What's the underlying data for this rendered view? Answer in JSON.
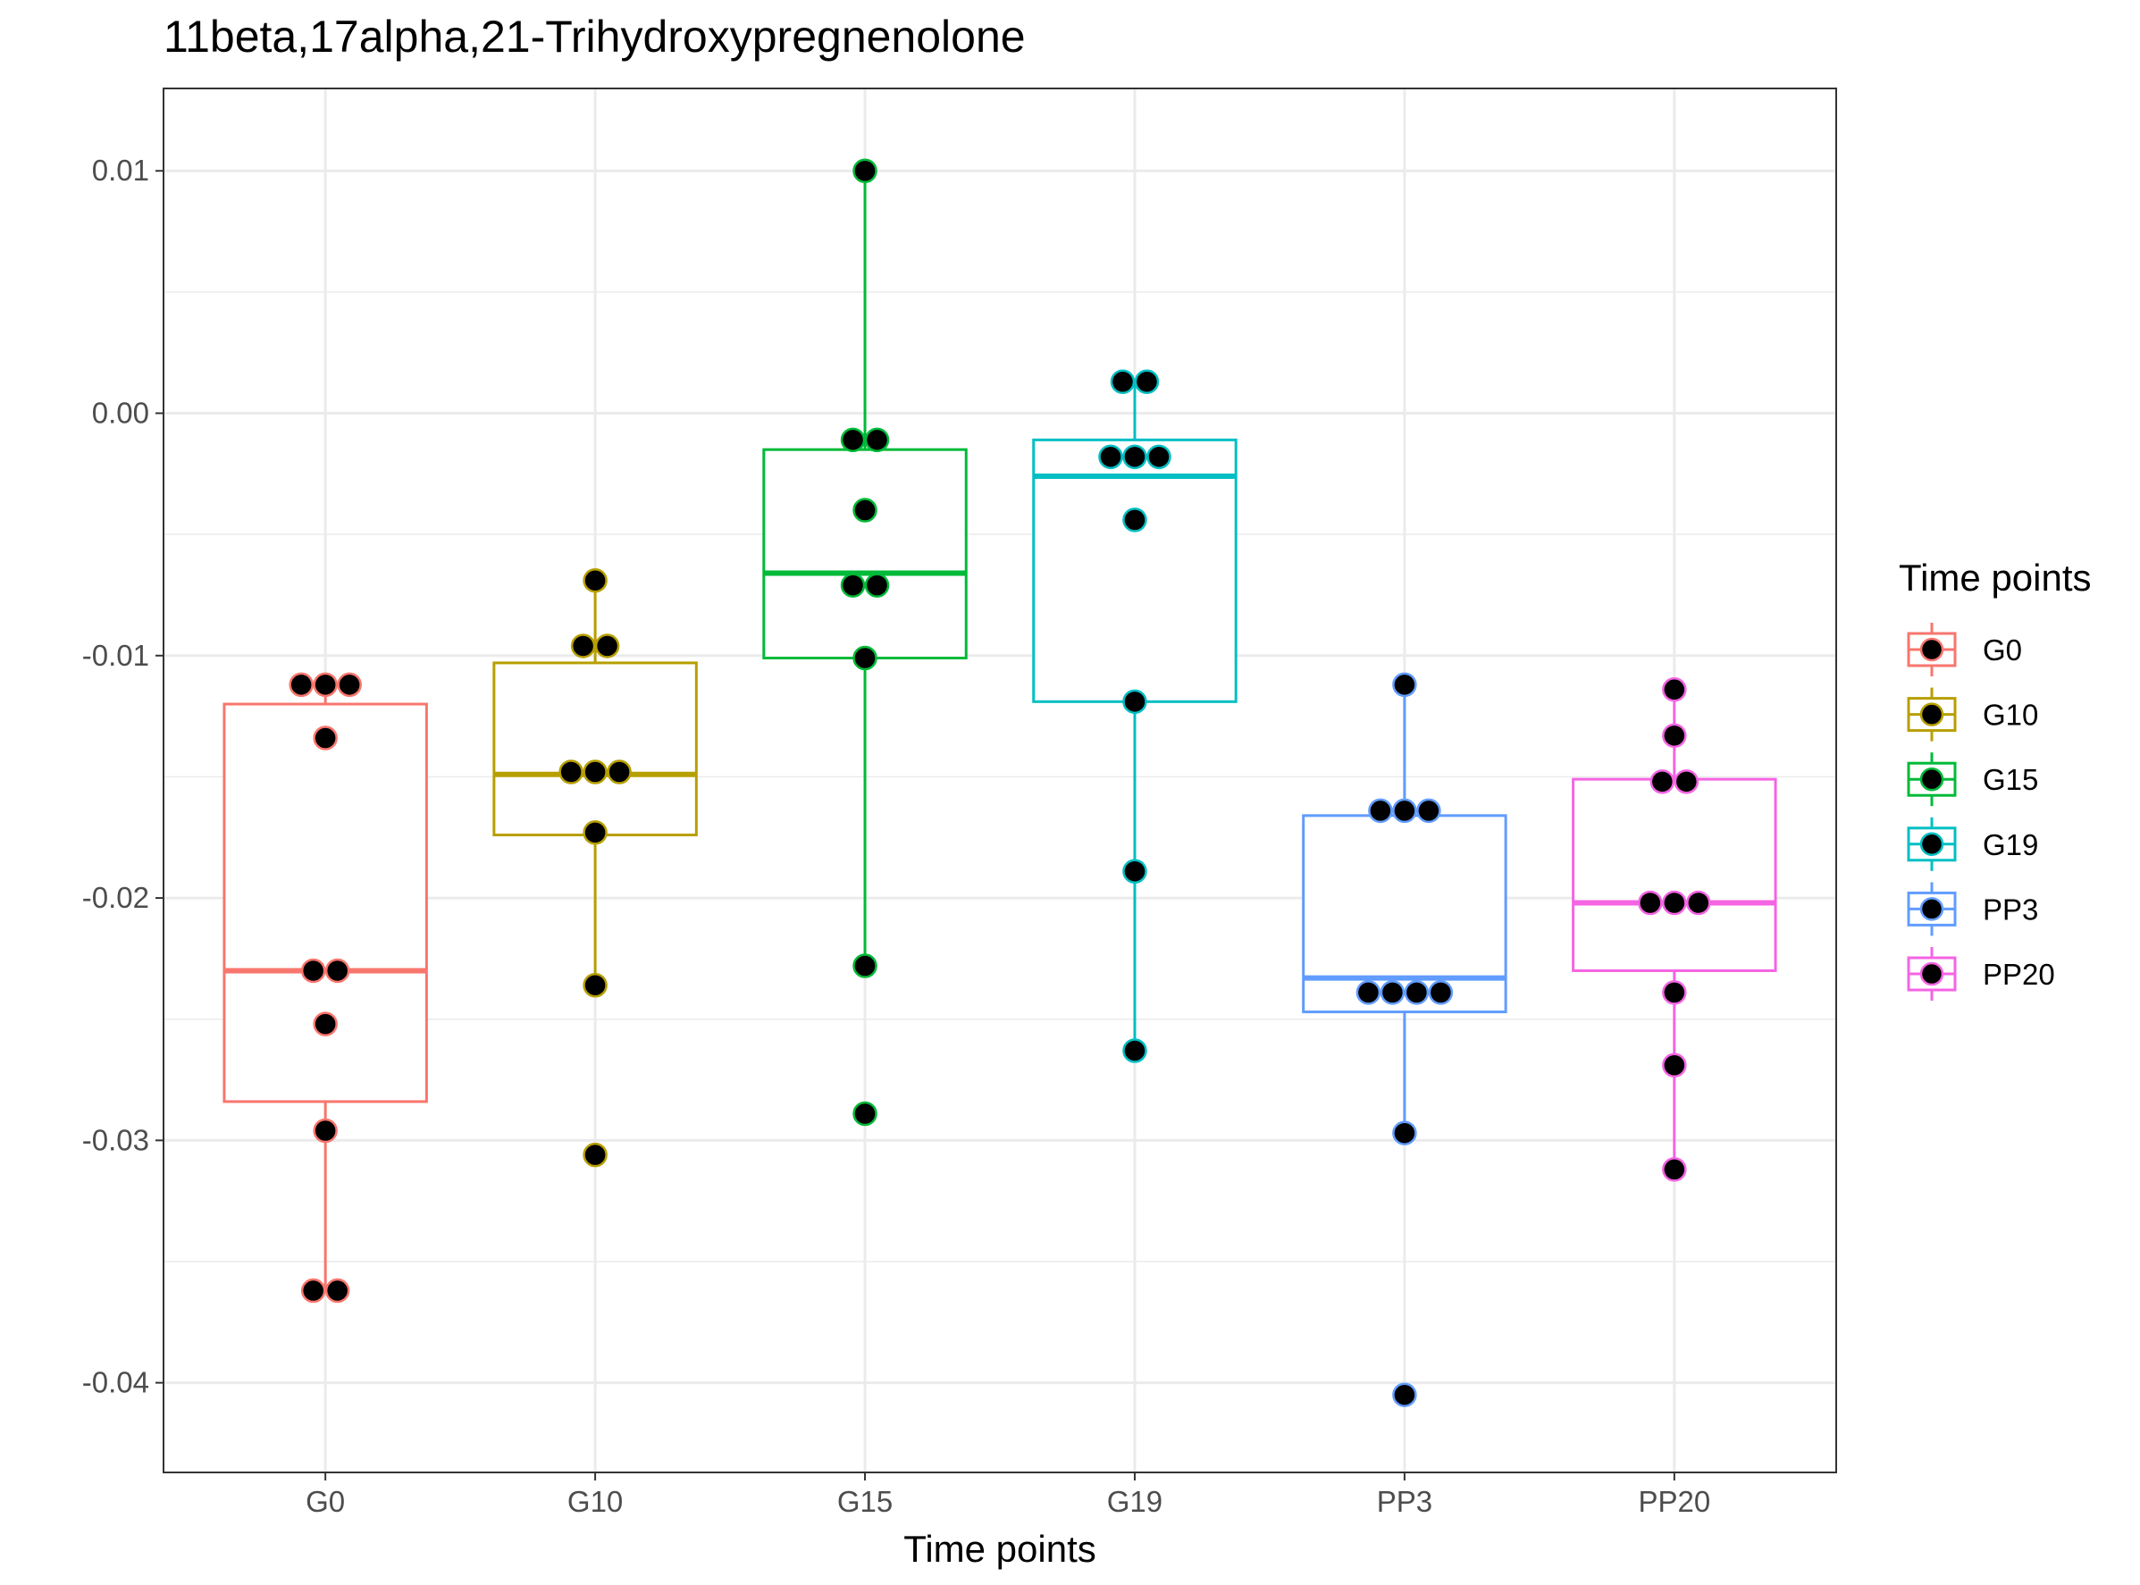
{
  "chart_data": {
    "type": "box",
    "title": "11beta,17alpha,21-Trihydroxypregnenolone",
    "xlabel": "Time points",
    "ylabel": "",
    "ylim": [
      -0.0437,
      0.0134
    ],
    "yticks": [
      0.01,
      0.0,
      -0.01,
      -0.02,
      -0.03,
      -0.04
    ],
    "ytick_labels": [
      "0.01",
      "0.00",
      "-0.01",
      "-0.02",
      "-0.03",
      "-0.04"
    ],
    "categories": [
      "G0",
      "G10",
      "G15",
      "G19",
      "PP3",
      "PP20"
    ],
    "legend": {
      "title": "Time points",
      "position": "right"
    },
    "grid": true,
    "series": [
      {
        "name": "G0",
        "color": "#F8766D",
        "box": {
          "q1": -0.0284,
          "median": -0.023,
          "q3": -0.012,
          "whisker_low": -0.0362,
          "whisker_high": -0.0112
        },
        "points": [
          -0.0112,
          -0.0112,
          -0.0112,
          -0.0134,
          -0.023,
          -0.023,
          -0.0252,
          -0.0296,
          -0.0362,
          -0.0362
        ]
      },
      {
        "name": "G10",
        "color": "#B79F00",
        "box": {
          "q1": -0.0174,
          "median": -0.0149,
          "q3": -0.0103,
          "whisker_low": -0.0236,
          "whisker_high": -0.0069
        },
        "points": [
          -0.0069,
          -0.0096,
          -0.0096,
          -0.0148,
          -0.0148,
          -0.0148,
          -0.0173,
          -0.0236,
          -0.0306
        ]
      },
      {
        "name": "G15",
        "color": "#00BA38",
        "box": {
          "q1": -0.0101,
          "median": -0.0066,
          "q3": -0.0015,
          "whisker_low": -0.0228,
          "whisker_high": 0.01
        },
        "points": [
          0.01,
          -0.0011,
          -0.0011,
          -0.004,
          -0.0071,
          -0.0071,
          -0.0101,
          -0.0228,
          -0.0289
        ]
      },
      {
        "name": "G19",
        "color": "#00BFC4",
        "box": {
          "q1": -0.0119,
          "median": -0.0026,
          "q3": -0.0011,
          "whisker_low": -0.0263,
          "whisker_high": 0.0013
        },
        "points": [
          0.0013,
          0.0013,
          -0.0018,
          -0.0018,
          -0.0018,
          -0.0044,
          -0.0119,
          -0.0189,
          -0.0263
        ]
      },
      {
        "name": "PP3",
        "color": "#619CFF",
        "box": {
          "q1": -0.0247,
          "median": -0.0233,
          "q3": -0.0166,
          "whisker_low": -0.0297,
          "whisker_high": -0.0112
        },
        "points": [
          -0.0112,
          -0.0164,
          -0.0164,
          -0.0164,
          -0.0239,
          -0.0239,
          -0.0239,
          -0.0239,
          -0.0297,
          -0.0405
        ]
      },
      {
        "name": "PP20",
        "color": "#F564E3",
        "box": {
          "q1": -0.023,
          "median": -0.0202,
          "q3": -0.0151,
          "whisker_low": -0.0312,
          "whisker_high": -0.0114
        },
        "points": [
          -0.0114,
          -0.0133,
          -0.0152,
          -0.0152,
          -0.0202,
          -0.0202,
          -0.0202,
          -0.0239,
          -0.0269,
          -0.0312
        ]
      }
    ]
  }
}
